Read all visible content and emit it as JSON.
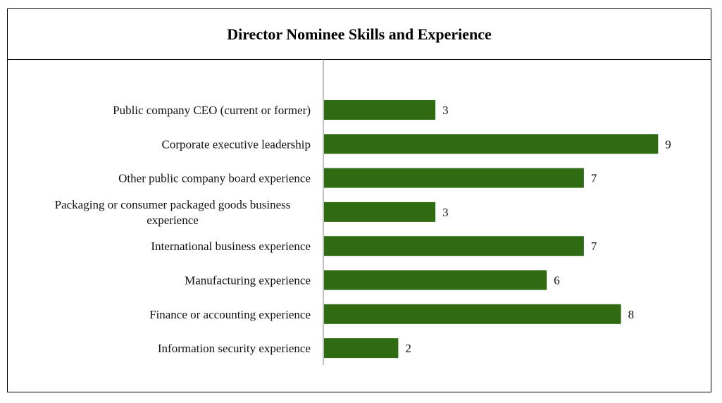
{
  "chart_data": {
    "type": "bar",
    "orientation": "horizontal",
    "title": "Director Nominee Skills and Experience",
    "categories": [
      "Public company CEO (current or former)",
      "Corporate executive leadership",
      "Other public company board experience",
      "Packaging or consumer packaged goods business experience",
      "International business experience",
      "Manufacturing experience",
      "Finance or accounting experience",
      "Information security experience"
    ],
    "category_lines": [
      [
        "Public company CEO (current or former)"
      ],
      [
        "Corporate executive leadership"
      ],
      [
        "Other public company board experience"
      ],
      [
        "Packaging or consumer packaged goods business",
        "experience"
      ],
      [
        "International business experience"
      ],
      [
        "Manufacturing experience"
      ],
      [
        "Finance or accounting experience"
      ],
      [
        "Information security experience"
      ]
    ],
    "values": [
      3,
      9,
      7,
      3,
      7,
      6,
      8,
      2
    ],
    "xlim": [
      0,
      9
    ],
    "grid": false,
    "legend": "none",
    "colors": {
      "bar": "#2e6b12",
      "axis": "#808080"
    }
  }
}
